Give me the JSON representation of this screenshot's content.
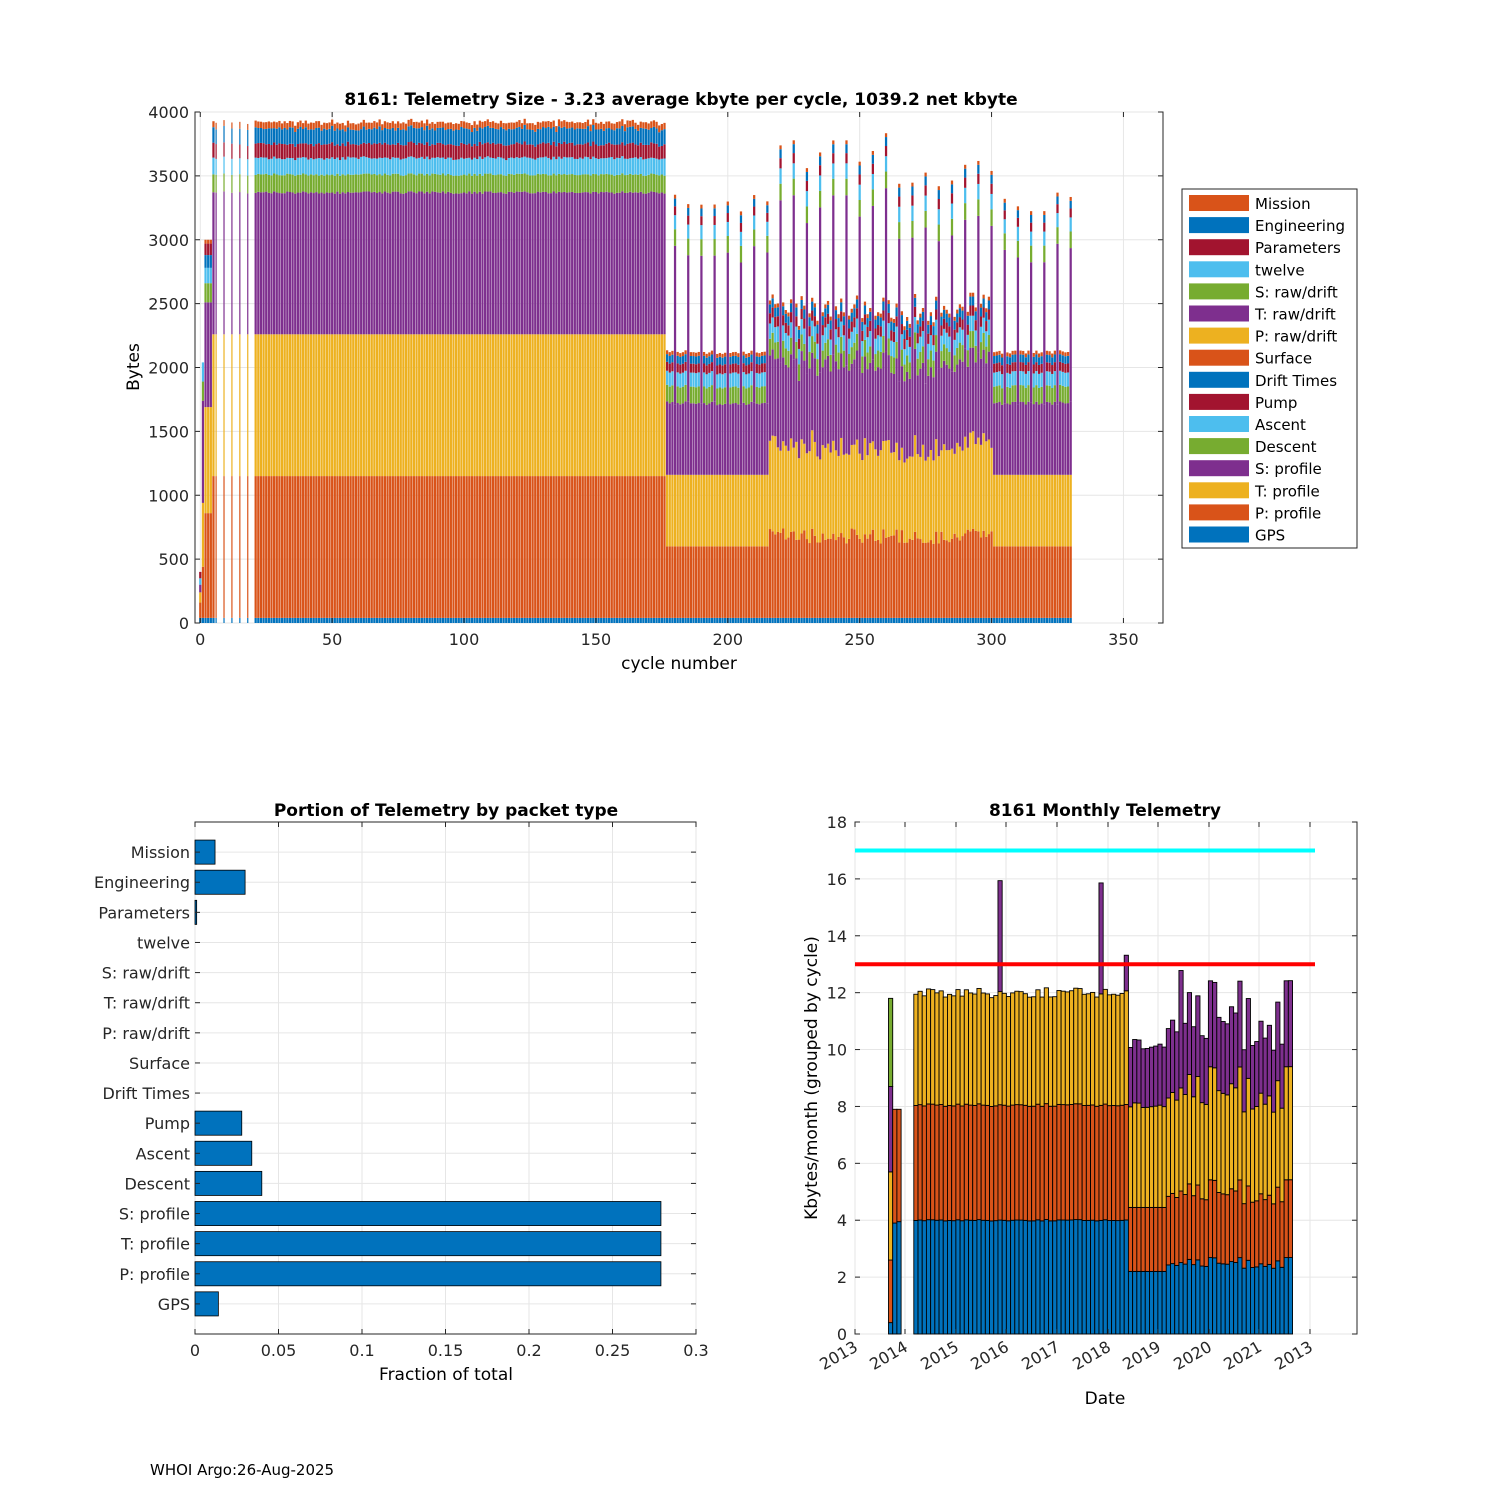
{
  "footer": "WHOI Argo:26-Aug-2025",
  "colors": {
    "blue": "#0072BD",
    "orange": "#D95319",
    "yellow": "#EDB120",
    "purple": "#7E2F8E",
    "green": "#77AC30",
    "cyan": "#4DBEEE",
    "red": "#A2142F",
    "ref_cyan": "#00FFFF",
    "ref_red": "#FF0000"
  },
  "chart_data": [
    {
      "id": "telemetry-size",
      "type": "bar",
      "stacked": true,
      "title": "8161: Telemetry Size - 3.23 average kbyte per cycle, 1039.2 net kbyte",
      "xlabel": "cycle number",
      "ylabel": "Bytes",
      "xlim": [
        -2,
        365
      ],
      "ylim": [
        0,
        4000
      ],
      "xticks": [
        0,
        50,
        100,
        150,
        200,
        250,
        300,
        350
      ],
      "yticks": [
        0,
        500,
        1000,
        1500,
        2000,
        2500,
        3000,
        3500,
        4000
      ],
      "grid": true,
      "legend_position": "right",
      "legend": [
        "Mission",
        "Engineering",
        "Parameters",
        "twelve",
        "S: raw/drift",
        "T: raw/drift",
        "P: raw/drift",
        "Surface",
        "Drift Times",
        "Pump",
        "Ascent",
        "Descent",
        "S: profile",
        "T: profile",
        "P: profile",
        "GPS"
      ],
      "legend_colors": [
        "orange",
        "blue",
        "red",
        "cyan",
        "green",
        "purple",
        "yellow",
        "orange",
        "blue",
        "red",
        "cyan",
        "green",
        "purple",
        "yellow",
        "orange",
        "blue"
      ],
      "stack_order_bottom_to_top": [
        "GPS",
        "P: profile",
        "T: profile",
        "S: profile",
        "Descent",
        "Ascent",
        "Pump",
        "Mission/Engineering"
      ],
      "cycles": [
        0,
        330
      ],
      "regimes": [
        {
          "cycles": "0-5",
          "description": "early partial cycles",
          "totals_bytes": [
            400,
            2050,
            2950,
            2900,
            2700,
            3800
          ]
        },
        {
          "cycles": "6-176",
          "GPS": 40,
          "P_profile": 1110,
          "T_profile": 1110,
          "S_profile": 1110,
          "Descent": 140,
          "Ascent": 130,
          "Pump": 110,
          "Mission_Engineering": 190,
          "total_approx": 3850
        },
        {
          "cycles": "177-215",
          "GPS": 40,
          "P_profile": 560,
          "T_profile": 560,
          "S_profile": 560,
          "Descent": 130,
          "Ascent": 110,
          "Pump": 90,
          "Mission_Engineering": 90,
          "total_approx": 2100,
          "spikes_every_5_cycles_to": 3450
        },
        {
          "cycles": "216-300",
          "total_approx": 2400,
          "spikes_every_5_cycles_to": [
            3500,
            3750
          ]
        },
        {
          "cycles": "301-330",
          "total_approx": 2100,
          "spikes_to": [
            3550,
            3150
          ]
        }
      ]
    },
    {
      "id": "portion-by-packet",
      "type": "bar",
      "orientation": "horizontal",
      "title": "Portion of Telemetry by packet type",
      "xlabel": "Fraction of total",
      "ylabel": "",
      "xlim": [
        0,
        0.3
      ],
      "xticks": [
        0,
        0.05,
        0.1,
        0.15,
        0.2,
        0.25,
        0.3
      ],
      "xtick_labels": [
        "0",
        "0.05",
        "0.1",
        "0.15",
        "0.2",
        "0.25",
        "0.3"
      ],
      "grid": true,
      "categories": [
        "Mission",
        "Engineering",
        "Parameters",
        "twelve",
        "S: raw/drift",
        "T: raw/drift",
        "P: raw/drift",
        "Surface",
        "Drift Times",
        "Pump",
        "Ascent",
        "Descent",
        "S: profile",
        "T: profile",
        "P: profile",
        "GPS"
      ],
      "values": [
        0.012,
        0.03,
        0.001,
        0,
        0,
        0,
        0,
        0,
        0,
        0.028,
        0.034,
        0.04,
        0.279,
        0.279,
        0.279,
        0.014
      ]
    },
    {
      "id": "monthly-telemetry",
      "type": "bar",
      "stacked": true,
      "title": "8161 Monthly Telemetry",
      "xlabel": "Date",
      "ylabel": "Kbytes/month (grouped by cycle)",
      "ylim": [
        0,
        18
      ],
      "yticks": [
        0,
        2,
        4,
        6,
        8,
        10,
        12,
        14,
        16,
        18
      ],
      "xtick_labels": [
        "2013",
        "2014",
        "2015",
        "2016",
        "2017",
        "2018",
        "2019",
        "2020",
        "2021",
        "2013"
      ],
      "grid": true,
      "reference_lines": [
        {
          "value": 17,
          "color": "ref_cyan"
        },
        {
          "value": 13,
          "color": "ref_red"
        }
      ],
      "series_order": [
        "GPS/P: profile (blue)",
        "orange",
        "yellow",
        "purple"
      ],
      "months": [
        {
          "period": "2013-09",
          "b": 0.4,
          "o": 2.2,
          "y": 3.1,
          "p": 3.0,
          "g": 3.1
        },
        {
          "period": "2013-10",
          "b": 3.9,
          "o": 4.0,
          "y": 0,
          "p": 0
        },
        {
          "period": "2013-11",
          "b": 3.9,
          "o": 4.0,
          "y": 0,
          "p": 0
        },
        {
          "period": "2014-03 to 2018-05",
          "b": 4.0,
          "o": 4.05,
          "y": 4.0,
          "p": 0,
          "total": 12.05
        },
        {
          "period": "2015-11",
          "spike_total": 16.05
        },
        {
          "period": "2017-11",
          "spike_total": 16.0
        },
        {
          "period": "2018-05",
          "spike_total": 13.3
        },
        {
          "period": "2018-06 to 2019-02",
          "b": 2.2,
          "o": 2.2,
          "y": 3.6,
          "p": 2.2,
          "total": 10.2
        },
        {
          "period": "2019-03 to 2021-08",
          "b": 2.5,
          "o": 2.5,
          "y": 3.4,
          "p": 2.7,
          "total_range": [
            9.7,
            12.6
          ]
        }
      ]
    }
  ]
}
